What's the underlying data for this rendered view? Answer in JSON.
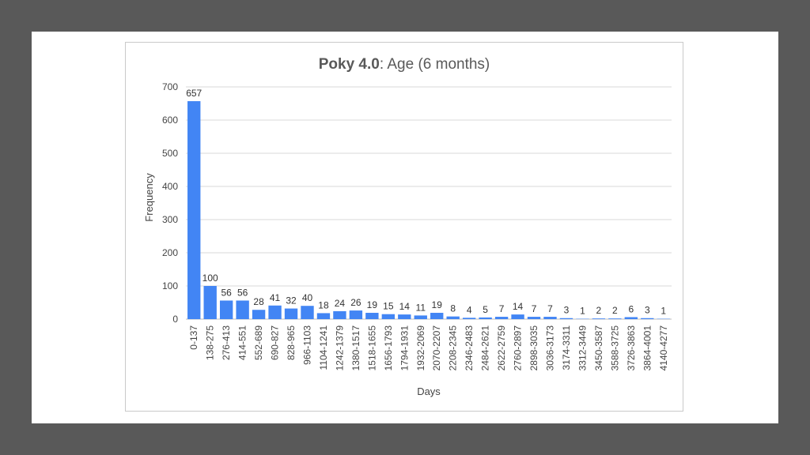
{
  "colors": {
    "bar": "#4285F4",
    "grid": "#d9d9d9",
    "background": "#595959"
  },
  "chart_data": {
    "type": "bar",
    "title_bold": "Poky 4.0",
    "title_rest": ": Age (6 months)",
    "xlabel": "Days",
    "ylabel": "Frequency",
    "ylim": [
      0,
      700
    ],
    "yticks": [
      0,
      100,
      200,
      300,
      400,
      500,
      600,
      700
    ],
    "grid": true,
    "legend": "none",
    "categories": [
      "0-137",
      "138-275",
      "276-413",
      "414-551",
      "552-689",
      "690-827",
      "828-965",
      "966-1103",
      "1104-1241",
      "1242-1379",
      "1380-1517",
      "1518-1655",
      "1656-1793",
      "1794-1931",
      "1932-2069",
      "2070-2207",
      "2208-2345",
      "2346-2483",
      "2484-2621",
      "2622-2759",
      "2760-2897",
      "2898-3035",
      "3036-3173",
      "3174-3311",
      "3312-3449",
      "3450-3587",
      "3588-3725",
      "3726-3863",
      "3864-4001",
      "4140-4277"
    ],
    "values": [
      657,
      100,
      56,
      56,
      28,
      41,
      32,
      40,
      18,
      24,
      26,
      19,
      15,
      14,
      11,
      19,
      8,
      4,
      5,
      7,
      14,
      7,
      7,
      3,
      1,
      2,
      2,
      6,
      3,
      1
    ]
  }
}
